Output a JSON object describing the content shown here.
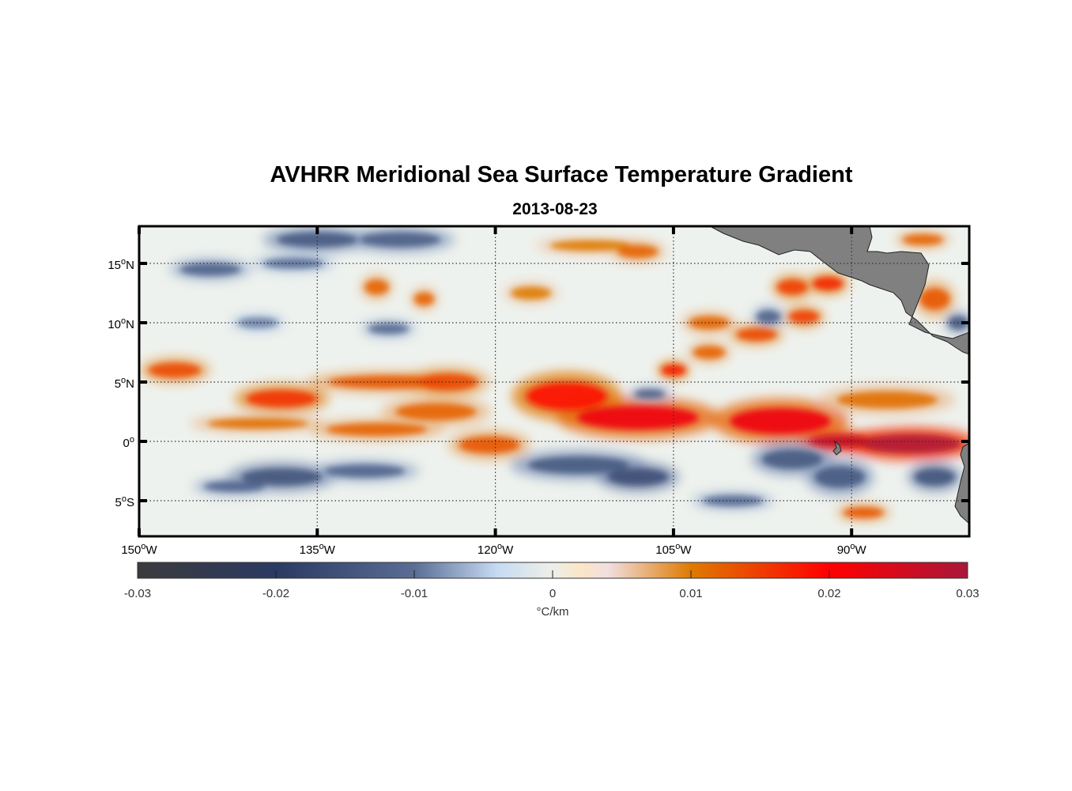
{
  "title": "AVHRR Meridional Sea Surface Temperature Gradient",
  "subtitle": "2013-08-23",
  "chart_data": {
    "type": "heatmap",
    "title": "AVHRR Meridional Sea Surface Temperature Gradient",
    "subtitle": "2013-08-23",
    "projection": "equirectangular",
    "lon_range": [
      -150,
      -80
    ],
    "lat_range": [
      -8,
      18
    ],
    "x_ticks": [
      {
        "value": -150,
        "label": "150",
        "deg": "o",
        "hemi": "W"
      },
      {
        "value": -135,
        "label": "135",
        "deg": "o",
        "hemi": "W"
      },
      {
        "value": -120,
        "label": "120",
        "deg": "o",
        "hemi": "W"
      },
      {
        "value": -105,
        "label": "105",
        "deg": "o",
        "hemi": "W"
      },
      {
        "value": -90,
        "label": "90",
        "deg": "o",
        "hemi": "W"
      }
    ],
    "y_ticks": [
      {
        "value": 15,
        "label": "15",
        "deg": "o",
        "hemi": "N"
      },
      {
        "value": 10,
        "label": "10",
        "deg": "o",
        "hemi": "N"
      },
      {
        "value": 5,
        "label": "5",
        "deg": "o",
        "hemi": "N"
      },
      {
        "value": 0,
        "label": "0",
        "deg": "o",
        "hemi": ""
      },
      {
        "value": -5,
        "label": "5",
        "deg": "o",
        "hemi": "S"
      }
    ],
    "grid": true,
    "colorbar": {
      "orientation": "horizontal",
      "placement": "bottom",
      "range": [
        -0.03,
        0.03
      ],
      "ticks": [
        -0.03,
        -0.02,
        -0.01,
        0,
        0.01,
        0.02,
        0.03
      ],
      "tick_labels": [
        "-0.03",
        "-0.02",
        "-0.01",
        "0",
        "0.01",
        "0.02",
        "0.03"
      ],
      "label": "°C/km",
      "stops": [
        {
          "value": -0.03,
          "color": "#3b3b3d"
        },
        {
          "value": -0.02,
          "color": "#2a3a62"
        },
        {
          "value": -0.01,
          "color": "#5a6d95"
        },
        {
          "value": -0.004,
          "color": "#c6dbf2"
        },
        {
          "value": 0,
          "color": "#eeefe9"
        },
        {
          "value": 0.002,
          "color": "#fbe6c6"
        },
        {
          "value": 0.004,
          "color": "#f0dfe0"
        },
        {
          "value": 0.01,
          "color": "#de7a00"
        },
        {
          "value": 0.02,
          "color": "#ff0000"
        },
        {
          "value": 0.03,
          "color": "#a8173b"
        }
      ]
    },
    "features": {
      "land_color": "#808080",
      "positive_color": "#e05a10",
      "strong_positive_color": "#c0102a",
      "negative_color": "#3d5682",
      "background_color": "#eef2ee"
    },
    "anomalies": [
      {
        "lon": -147,
        "lat": 6.0,
        "value": 0.014,
        "rx": 2.6,
        "ry": 0.7
      },
      {
        "lon": -138,
        "lat": 3.6,
        "value": 0.016,
        "rx": 3.5,
        "ry": 0.8
      },
      {
        "lon": -140,
        "lat": 1.5,
        "value": 0.011,
        "rx": 5,
        "ry": 0.5
      },
      {
        "lon": -130,
        "lat": 1.0,
        "value": 0.012,
        "rx": 5,
        "ry": 0.6
      },
      {
        "lon": -129,
        "lat": 5.0,
        "value": 0.013,
        "rx": 6,
        "ry": 0.6
      },
      {
        "lon": -124,
        "lat": 5.0,
        "value": 0.014,
        "rx": 3,
        "ry": 0.8
      },
      {
        "lon": -125,
        "lat": 2.5,
        "value": 0.012,
        "rx": 4,
        "ry": 0.8
      },
      {
        "lon": -120.5,
        "lat": -0.3,
        "value": 0.013,
        "rx": 3,
        "ry": 0.8
      },
      {
        "lon": -114,
        "lat": 3.8,
        "value": 0.019,
        "rx": 4,
        "ry": 1.3
      },
      {
        "lon": -108,
        "lat": 2.0,
        "value": 0.022,
        "rx": 6,
        "ry": 1.1
      },
      {
        "lon": -105,
        "lat": 6.0,
        "value": 0.018,
        "rx": 1.2,
        "ry": 0.5
      },
      {
        "lon": -96,
        "lat": 1.7,
        "value": 0.022,
        "rx": 5,
        "ry": 1.2
      },
      {
        "lon": -91,
        "lat": 0.0,
        "value": 0.027,
        "rx": 3,
        "ry": 0.6
      },
      {
        "lon": -85,
        "lat": -0.2,
        "value": 0.029,
        "rx": 5,
        "ry": 0.9
      },
      {
        "lon": -87,
        "lat": 3.5,
        "value": 0.011,
        "rx": 5,
        "ry": 0.8
      },
      {
        "lon": -112,
        "lat": 16.5,
        "value": 0.01,
        "rx": 4,
        "ry": 0.5
      },
      {
        "lon": -108,
        "lat": 16.0,
        "value": 0.012,
        "rx": 2,
        "ry": 0.6
      },
      {
        "lon": -117,
        "lat": 12.5,
        "value": 0.01,
        "rx": 2,
        "ry": 0.6
      },
      {
        "lon": -126,
        "lat": 12.0,
        "value": 0.012,
        "rx": 1,
        "ry": 0.6
      },
      {
        "lon": -130,
        "lat": 13.0,
        "value": 0.012,
        "rx": 1.2,
        "ry": 0.7
      },
      {
        "lon": -98,
        "lat": 9.0,
        "value": 0.014,
        "rx": 2,
        "ry": 0.6
      },
      {
        "lon": -102,
        "lat": 10.0,
        "value": 0.012,
        "rx": 2,
        "ry": 0.6
      },
      {
        "lon": -92,
        "lat": 13.3,
        "value": 0.017,
        "rx": 1.5,
        "ry": 0.6
      },
      {
        "lon": -95,
        "lat": 13.0,
        "value": 0.015,
        "rx": 1.5,
        "ry": 0.7
      },
      {
        "lon": -94,
        "lat": 10.5,
        "value": 0.015,
        "rx": 1.5,
        "ry": 0.6
      },
      {
        "lon": -102,
        "lat": 7.5,
        "value": 0.012,
        "rx": 1.6,
        "ry": 0.6
      },
      {
        "lon": -83,
        "lat": 12.0,
        "value": 0.013,
        "rx": 1.5,
        "ry": 1.0
      },
      {
        "lon": -84,
        "lat": 17.0,
        "value": 0.012,
        "rx": 2,
        "ry": 0.5
      },
      {
        "lon": -89,
        "lat": -6.0,
        "value": 0.013,
        "rx": 2,
        "ry": 0.5
      },
      {
        "lon": -144,
        "lat": 14.5,
        "value": -0.012,
        "rx": 3,
        "ry": 0.6
      },
      {
        "lon": -135,
        "lat": 17.0,
        "value": -0.014,
        "rx": 4,
        "ry": 0.7
      },
      {
        "lon": -128,
        "lat": 17.0,
        "value": -0.013,
        "rx": 4,
        "ry": 0.7
      },
      {
        "lon": -137,
        "lat": 15.0,
        "value": -0.01,
        "rx": 3,
        "ry": 0.5
      },
      {
        "lon": -140,
        "lat": 10.0,
        "value": -0.009,
        "rx": 2,
        "ry": 0.5
      },
      {
        "lon": -129,
        "lat": 9.5,
        "value": -0.011,
        "rx": 2,
        "ry": 0.5
      },
      {
        "lon": -138,
        "lat": -3.0,
        "value": -0.015,
        "rx": 4,
        "ry": 0.8
      },
      {
        "lon": -131,
        "lat": -2.5,
        "value": -0.012,
        "rx": 4,
        "ry": 0.6
      },
      {
        "lon": -142,
        "lat": -3.8,
        "value": -0.012,
        "rx": 3,
        "ry": 0.5
      },
      {
        "lon": -113,
        "lat": -2.0,
        "value": -0.014,
        "rx": 5,
        "ry": 0.8
      },
      {
        "lon": -108,
        "lat": -3.0,
        "value": -0.016,
        "rx": 3,
        "ry": 0.8
      },
      {
        "lon": -95,
        "lat": -1.5,
        "value": -0.014,
        "rx": 3,
        "ry": 0.9
      },
      {
        "lon": -91,
        "lat": -3.0,
        "value": -0.014,
        "rx": 2.5,
        "ry": 1.0
      },
      {
        "lon": -83,
        "lat": -3.0,
        "value": -0.015,
        "rx": 2,
        "ry": 0.8
      },
      {
        "lon": -100,
        "lat": -5.0,
        "value": -0.011,
        "rx": 3,
        "ry": 0.5
      },
      {
        "lon": -97,
        "lat": 10.5,
        "value": -0.012,
        "rx": 1.2,
        "ry": 0.6
      },
      {
        "lon": -81,
        "lat": 10.0,
        "value": -0.014,
        "rx": 1,
        "ry": 0.6
      },
      {
        "lon": -107,
        "lat": 4.0,
        "value": -0.013,
        "rx": 1.5,
        "ry": 0.4
      }
    ]
  }
}
